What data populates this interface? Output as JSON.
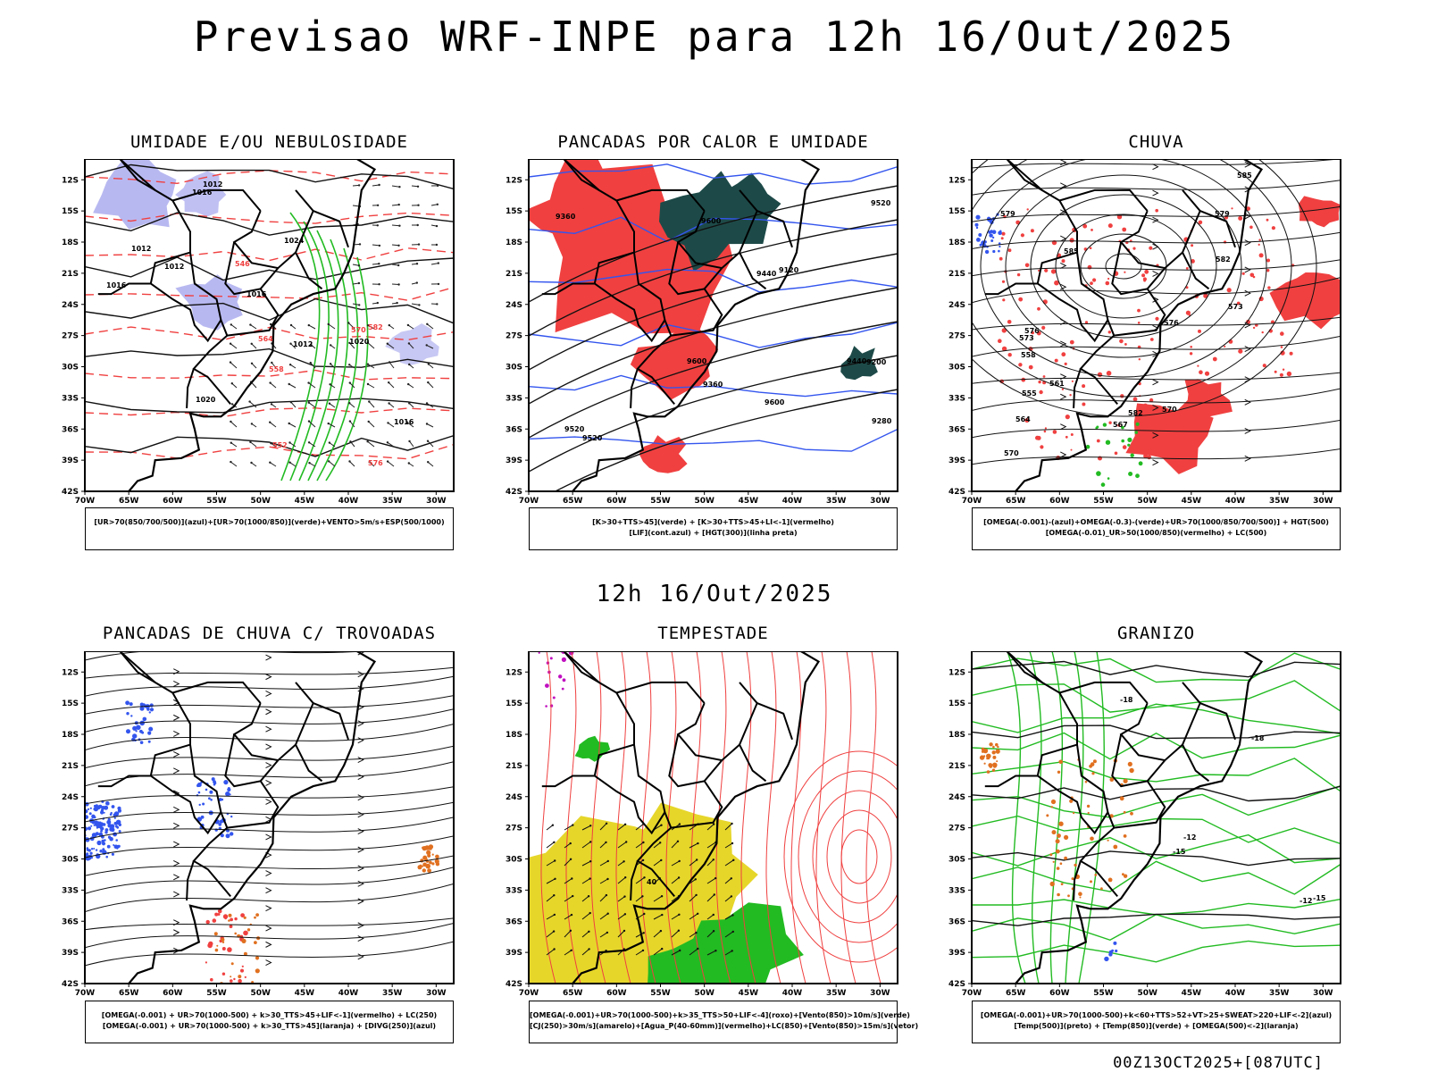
{
  "title": "Previsao WRF-INPE  para 12h 16/Out/2025",
  "middle_date": "12h 16/Out/2025",
  "footer": "00Z13OCT2025+[087UTC]",
  "lat_labels": [
    "12S",
    "15S",
    "18S",
    "21S",
    "24S",
    "27S",
    "30S",
    "33S",
    "36S",
    "39S",
    "42S"
  ],
  "lon_labels": [
    "70W",
    "65W",
    "60W",
    "55W",
    "50W",
    "45W",
    "40W",
    "35W",
    "30W"
  ],
  "colors": {
    "red": "#f04040",
    "green": "#22bb22",
    "blue": "#3355ee",
    "lavender": "#b0b0f0",
    "darkteal": "#1d4a48",
    "yellow": "#e6d62a",
    "orange": "#e07020",
    "magenta": "#c010c0"
  },
  "panels": [
    {
      "title": "UMIDADE E/OU NEBULOSIDADE",
      "legend": [
        "[UR>70(850/700/500)](azul)+[UR>70(1000/850)](verde)+VENTO>5m/s+ESP(500/1000)"
      ],
      "contour_labels": [
        "1012",
        "1012",
        "1016",
        "1016",
        "1020",
        "1024",
        "1016",
        "1012",
        "1016",
        "1020",
        "1012",
        "570",
        "576",
        "582",
        "558",
        "552",
        "546",
        "564"
      ]
    },
    {
      "title": "PANCADAS POR CALOR E UMIDADE",
      "legend": [
        "[K>30+TTS>45](verde) + [K>30+TTS>45+LI<-1](vermelho)",
        "[LIF](cont.azul) + [HGT(300)](linha preta)"
      ],
      "contour_labels": [
        "9600",
        "9600",
        "9520",
        "9520",
        "9440",
        "9440",
        "9360",
        "9360",
        "9280",
        "9200",
        "9120",
        "9600",
        "9520"
      ]
    },
    {
      "title": "CHUVA",
      "legend": [
        "[OMEGA(-0.001)-(azul)+OMEGA(-0.3)-(verde)+UR>70(1000/850/700/500)] + HGT(500)",
        "[OMEGA(-0.01)_UR>50(1000/850)(vermelho) + LC(500)"
      ],
      "contour_labels": [
        "585",
        "585",
        "582",
        "579",
        "576",
        "573",
        "570",
        "567",
        "564",
        "561",
        "558",
        "555",
        "582",
        "579",
        "576",
        "573",
        "570"
      ]
    },
    {
      "title": "PANCADAS DE CHUVA C/ TROVOADAS",
      "legend": [
        "[OMEGA(-0.001) + UR>70(1000-500) + k>30_TTS>45+LIF<-1](vermelho) + LC(250)",
        "[OMEGA(-0.001) + UR>70(1000-500) + k>30_TTS>45](laranja) + [DIVG(250)](azul)"
      ],
      "contour_labels": []
    },
    {
      "title": "TEMPESTADE",
      "legend": [
        "[OMEGA(-0.001)+UR>70(1000-500)+k>35_TTS>50+LIF<-4](roxo)+[Vento(850)>10m/s](verde)",
        "[CJ(250)>30m/s](amarelo)+[Agua_P(40-60mm)](vermelho)+LC(850)+[Vento(850)>15m/s](vetor)"
      ],
      "contour_labels": [
        "40"
      ]
    },
    {
      "title": "GRANIZO",
      "legend": [
        "[OMEGA(-0.001)+UR>70(1000-500)+k<60+TTS>52+VT>25+SWEAT>220+LIF<-2](azul)",
        "[Temp(500)](preto) + [Temp(850)](verde) + [OMEGA(500)<-2](laranja)"
      ],
      "contour_labels": [
        "-12",
        "-12",
        "-15",
        "-18",
        "-18",
        "-15"
      ]
    }
  ]
}
